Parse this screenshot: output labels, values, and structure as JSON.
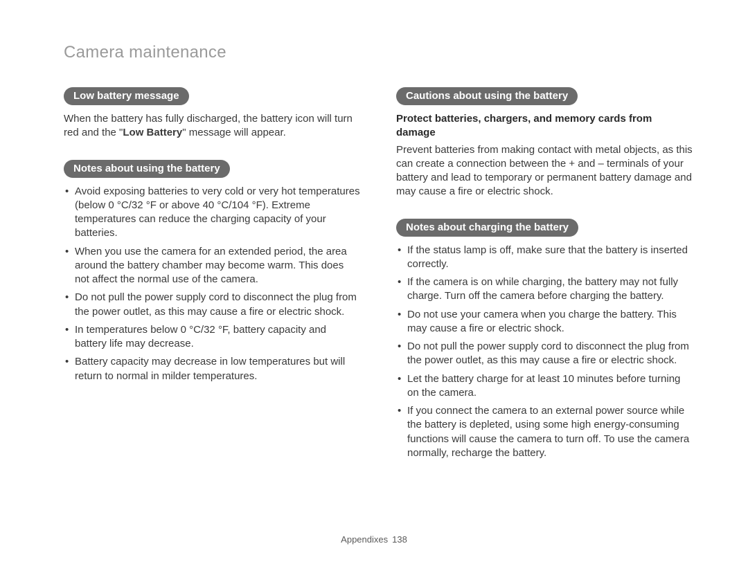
{
  "page": {
    "title": "Camera maintenance",
    "footer_label": "Appendixes",
    "footer_page": "138"
  },
  "left": {
    "section1": {
      "pill": "Low battery message",
      "para_pre": "When the battery has fully discharged, the battery icon will turn red and the \"",
      "para_bold": "Low Battery",
      "para_post": "\" message will appear."
    },
    "section2": {
      "pill": "Notes about using the battery",
      "bullets": [
        "Avoid exposing batteries to very cold or very hot temperatures (below 0 °C/32 °F or above 40 °C/104 °F). Extreme temperatures can reduce the charging capacity of your batteries.",
        "When you use the camera for an extended period, the area around the battery chamber may become warm. This does not affect the normal use of the camera.",
        "Do not pull the power supply cord to disconnect the plug from the power outlet, as this may cause a fire or electric shock.",
        "In temperatures below 0 °C/32 °F, battery capacity and battery life may decrease.",
        "Battery capacity may decrease in low temperatures but will return to normal in milder temperatures."
      ]
    }
  },
  "right": {
    "section1": {
      "pill": "Cautions about using the battery",
      "subhead": "Protect batteries, chargers, and memory cards from damage",
      "para": "Prevent batteries from making contact with metal objects, as this can create a connection between the + and – terminals of your battery and lead to temporary or permanent battery damage and may cause a fire or electric shock."
    },
    "section2": {
      "pill": "Notes about charging the battery",
      "bullets": [
        "If the status lamp is off, make sure that the battery is inserted correctly.",
        "If the camera is on while charging, the battery may not fully charge. Turn off the camera before charging the battery.",
        "Do not use your camera when you charge the battery. This may cause a fire or electric shock.",
        "Do not pull the power supply cord to disconnect the plug from the power outlet, as this may cause a fire or electric shock.",
        "Let the battery charge for at least 10 minutes before turning on the camera.",
        "If you connect the camera to an external power source while the battery is depleted, using some high energy-consuming functions will cause the camera to turn off. To use the camera normally, recharge the battery."
      ]
    }
  }
}
